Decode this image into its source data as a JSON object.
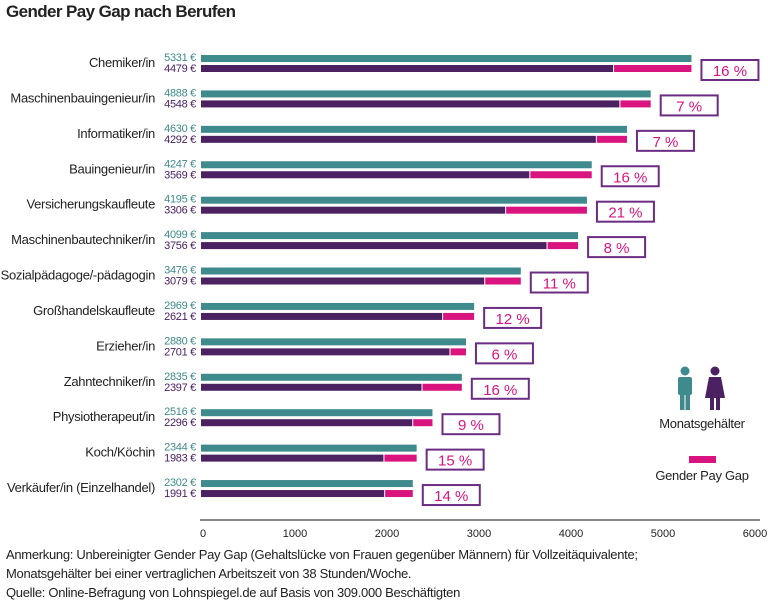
{
  "chart_data": {
    "type": "bar",
    "title": "Gender Pay Gap nach Berufen",
    "categories": [
      "Chemiker/in",
      "Maschinenbauingenieur/in",
      "Informatiker/in",
      "Bauingenieur/in",
      "Versicherungskaufleute",
      "Maschinenbautechniker/in",
      "Sozialpädagoge/-pädagogin",
      "Großhandelskaufleute",
      "Erzieher/in",
      "Zahntechniker/in",
      "Physiotherapeut/in",
      "Koch/Köchin",
      "Verkäufer/in (Einzelhandel)"
    ],
    "series": [
      {
        "name": "Männer",
        "values": [
          5331,
          4888,
          4630,
          4247,
          4195,
          4099,
          3476,
          2969,
          2880,
          2835,
          2516,
          2344,
          2302
        ],
        "color": "#3f8a8c"
      },
      {
        "name": "Frauen",
        "values": [
          4479,
          4548,
          4292,
          3569,
          3306,
          3756,
          3079,
          2621,
          2701,
          2397,
          2296,
          1983,
          1991
        ],
        "color": "#4b2161"
      }
    ],
    "gap_labels": [
      "16 %",
      "7 %",
      "7 %",
      "16 %",
      "21 %",
      "8 %",
      "11 %",
      "12 %",
      "6 %",
      "16 %",
      "9 %",
      "15 %",
      "14 %"
    ],
    "gap_color": "#d9147f",
    "value_suffix": " €",
    "xlim": [
      0,
      6000
    ],
    "xticks": [
      "0",
      "1000",
      "2000",
      "3000",
      "4000",
      "5000",
      "6000"
    ],
    "legend": {
      "salaries": "Monatsgehälter",
      "gap": "Gender Pay Gap",
      "placement": "right"
    },
    "grid": false
  },
  "notes": {
    "line1": "Anmerkung: Unbereinigter Gender Pay Gap (Gehaltslücke von Frauen gegenüber Männern) für Vollzeitäquivalente;",
    "line2": "Monatsgehälter bei einer vertraglichen Arbeitszeit von 38 Stunden/Woche.",
    "line3": "Quelle: Online-Befragung von Lohnspiegel.de auf Basis von 309.000 Beschäftigten"
  }
}
